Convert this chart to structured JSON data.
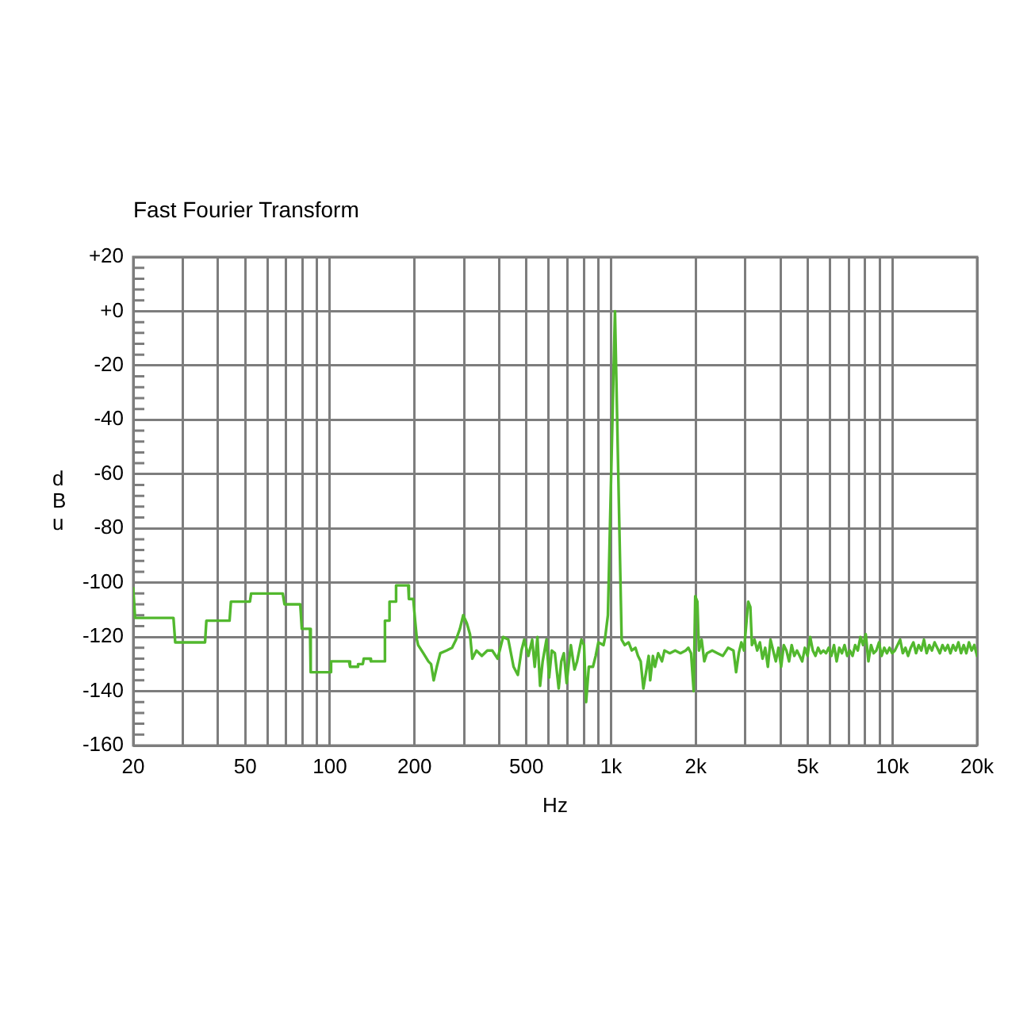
{
  "chart_data": {
    "type": "line",
    "title": "Fast Fourier Transform",
    "xlabel": "Hz",
    "ylabel": "dBu",
    "log": "x",
    "grid": true,
    "marker": "none",
    "line_style": "solid",
    "color": "#52b82e",
    "xlim": [
      20,
      20000
    ],
    "xticks": [
      20,
      {
        "value": 30,
        "label": null
      },
      {
        "value": 40,
        "label": null
      },
      50,
      {
        "value": 60,
        "label": null
      },
      {
        "value": 70,
        "label": null
      },
      {
        "value": 80,
        "label": null
      },
      {
        "value": 90,
        "label": null
      },
      100,
      200,
      {
        "value": 300,
        "label": null
      },
      {
        "value": 400,
        "label": null
      },
      500,
      {
        "value": 600,
        "label": null
      },
      {
        "value": 700,
        "label": null
      },
      {
        "value": 800,
        "label": null
      },
      {
        "value": 900,
        "label": null
      },
      {
        "value": 1000,
        "label": "1k"
      },
      {
        "value": 2000,
        "label": "2k"
      },
      {
        "value": 3000,
        "label": null
      },
      {
        "value": 4000,
        "label": null
      },
      {
        "value": 5000,
        "label": "5k"
      },
      {
        "value": 6000,
        "label": null
      },
      {
        "value": 7000,
        "label": null
      },
      {
        "value": 8000,
        "label": null
      },
      {
        "value": 9000,
        "label": null
      },
      {
        "value": 10000,
        "label": "10k"
      },
      {
        "value": 20000,
        "label": "20k"
      }
    ],
    "ylim": [
      -160,
      20
    ],
    "yticks": [
      {
        "value": 20,
        "label": "+20"
      },
      {
        "value": 16,
        "label": null
      },
      {
        "value": 12,
        "label": null
      },
      {
        "value": 8,
        "label": null
      },
      {
        "value": 4,
        "label": null
      },
      {
        "value": 0,
        "label": "+0"
      },
      {
        "value": -4,
        "label": null
      },
      {
        "value": -8,
        "label": null
      },
      {
        "value": -12,
        "label": null
      },
      {
        "value": -16,
        "label": null
      },
      -20,
      {
        "value": -24,
        "label": null
      },
      {
        "value": -28,
        "label": null
      },
      {
        "value": -32,
        "label": null
      },
      {
        "value": -36,
        "label": null
      },
      -40,
      {
        "value": -44,
        "label": null
      },
      {
        "value": -48,
        "label": null
      },
      {
        "value": -52,
        "label": null
      },
      {
        "value": -56,
        "label": null
      },
      -60,
      {
        "value": -64,
        "label": null
      },
      {
        "value": -68,
        "label": null
      },
      {
        "value": -72,
        "label": null
      },
      {
        "value": -76,
        "label": null
      },
      -80,
      {
        "value": -84,
        "label": null
      },
      {
        "value": -88,
        "label": null
      },
      {
        "value": -92,
        "label": null
      },
      {
        "value": -96,
        "label": null
      },
      -100,
      {
        "value": -104,
        "label": null
      },
      {
        "value": -108,
        "label": null
      },
      {
        "value": -112,
        "label": null
      },
      {
        "value": -116,
        "label": null
      },
      -120,
      {
        "value": -124,
        "label": null
      },
      {
        "value": -128,
        "label": null
      },
      {
        "value": -132,
        "label": null
      },
      {
        "value": -136,
        "label": null
      },
      -140,
      {
        "value": -144,
        "label": null
      },
      {
        "value": -148,
        "label": null
      },
      {
        "value": -152,
        "label": null
      },
      {
        "value": -156,
        "label": null
      },
      -160
    ],
    "x": [
      20,
      20.3,
      27.8,
      28.2,
      36,
      36.4,
      44,
      44.5,
      52,
      52.5,
      68,
      69,
      78.5,
      79.5,
      85,
      85.5,
      100.5,
      101,
      117,
      118,
      125,
      126,
      131,
      132,
      139,
      140,
      156,
      157,
      162,
      163,
      171,
      172,
      190,
      191,
      198,
      201,
      204,
      206,
      215,
      224,
      229,
      234,
      240,
      247,
      260,
      272,
      281,
      290,
      298,
      307,
      315,
      321,
      332,
      347,
      363,
      378,
      395,
      413,
      431,
      450,
      466,
      480,
      491,
      508,
      524,
      535,
      547,
      559,
      571,
      589,
      602,
      615,
      631,
      651,
      665,
      679,
      695,
      719,
      741,
      757,
      784,
      801,
      815,
      833,
      862,
      881,
      901,
      940,
      953,
      974,
      1032,
      1090,
      1118,
      1154,
      1184,
      1220,
      1246,
      1274,
      1302,
      1331,
      1360,
      1377,
      1408,
      1432,
      1470,
      1516,
      1548,
      1617,
      1689,
      1764,
      1842,
      1882,
      1924,
      1966,
      1991,
      2026,
      2052,
      2098,
      2144,
      2191,
      2288,
      2390,
      2495,
      2606,
      2722,
      2782,
      2843,
      2904,
      2968,
      3072,
      3126,
      3167,
      3236,
      3307,
      3380,
      3454,
      3530,
      3608,
      3687,
      3768,
      3851,
      3935,
      4022,
      4110,
      4199,
      4291,
      4385,
      4481,
      4579,
      4679,
      4780,
      4885,
      4992,
      5101,
      5213,
      5327,
      5444,
      5563,
      5685,
      5809,
      5937,
      6067,
      6199,
      6335,
      6474,
      6616,
      6761,
      6909,
      7060,
      7215,
      7373,
      7534,
      7699,
      7868,
      8040,
      8216,
      8396,
      8580,
      8768,
      8960,
      9156,
      9357,
      9562,
      9771,
      9985,
      10204,
      10427,
      10656,
      10889,
      11128,
      11371,
      11620,
      11875,
      12135,
      12401,
      12673,
      12950,
      13234,
      13524,
      13820,
      14123,
      14432,
      14748,
      15071,
      15401,
      15739,
      16083,
      16436,
      16796,
      17164,
      17540,
      17924,
      18316,
      18718,
      19128,
      19547,
      20000
    ],
    "values": [
      -102,
      -113,
      -113,
      -122,
      -122,
      -114,
      -114,
      -107,
      -107,
      -104,
      -104,
      -108,
      -108,
      -117,
      -117,
      -133,
      -133,
      -129,
      -129,
      -131,
      -131,
      -130,
      -130,
      -128,
      -128,
      -129,
      -129,
      -114,
      -114,
      -107,
      -107,
      -101,
      -101,
      -106,
      -106,
      -114,
      -121,
      -123,
      -126,
      -129,
      -130,
      -136,
      -131,
      -126,
      -125,
      -124,
      -121,
      -117,
      -112,
      -115,
      -119,
      -128,
      -125,
      -127,
      -125,
      -125,
      -128,
      -120,
      -121,
      -131,
      -134,
      -125,
      -121,
      -127,
      -121,
      -131,
      -120,
      -138,
      -129,
      -121,
      -135,
      -125,
      -126,
      -139,
      -129,
      -126,
      -137,
      -123,
      -132,
      -129,
      -121,
      -123,
      -144,
      -131,
      -131,
      -127,
      -122,
      -123,
      -120,
      -112,
      0,
      -121,
      -123,
      -122,
      -125,
      -124,
      -127,
      -129,
      -139,
      -133,
      -127,
      -136,
      -127,
      -131,
      -126,
      -129,
      -125,
      -126,
      -125,
      -126,
      -125,
      -124,
      -126,
      -140,
      -105,
      -107,
      -125,
      -121,
      -129,
      -126,
      -125,
      -126,
      -127,
      -124,
      -125,
      -133,
      -126,
      -122,
      -125,
      -107,
      -109,
      -123,
      -121,
      -125,
      -122,
      -128,
      -124,
      -131,
      -121,
      -125,
      -129,
      -124,
      -131,
      -123,
      -125,
      -129,
      -123,
      -127,
      -125,
      -127,
      -129,
      -124,
      -127,
      -120,
      -125,
      -127,
      -124,
      -126,
      -125,
      -126,
      -124,
      -127,
      -123,
      -129,
      -124,
      -126,
      -123,
      -127,
      -125,
      -127,
      -123,
      -125,
      -120,
      -123,
      -119,
      -129,
      -123,
      -126,
      -125,
      -122,
      -127,
      -124,
      -126,
      -124,
      -126,
      -125,
      -123,
      -121,
      -126,
      -124,
      -127,
      -124,
      -122,
      -126,
      -123,
      -125,
      -121,
      -126,
      -123,
      -125,
      -122,
      -124,
      -126,
      -123,
      -125,
      -123,
      -126,
      -123,
      -125,
      -122,
      -126,
      -123,
      -126,
      -122,
      -125,
      -123,
      -127
    ]
  }
}
